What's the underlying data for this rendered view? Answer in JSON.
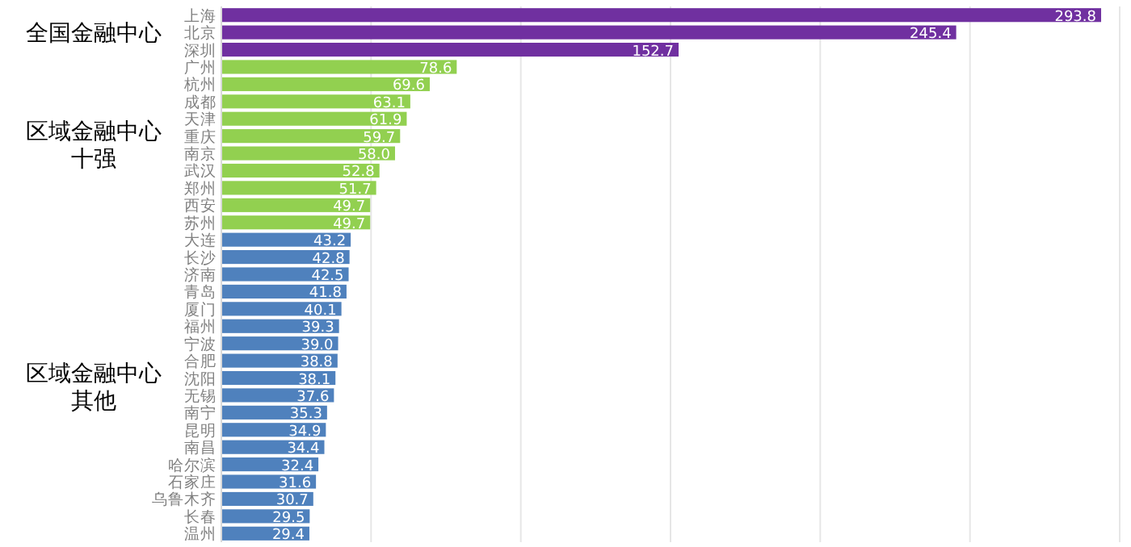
{
  "chart_data": {
    "type": "bar",
    "orientation": "horizontal",
    "categories": [
      "上海",
      "北京",
      "深圳",
      "广州",
      "杭州",
      "成都",
      "天津",
      "重庆",
      "南京",
      "武汉",
      "郑州",
      "西安",
      "苏州",
      "大连",
      "长沙",
      "济南",
      "青岛",
      "厦门",
      "福州",
      "宁波",
      "合肥",
      "沈阳",
      "无锡",
      "南宁",
      "昆明",
      "南昌",
      "哈尔滨",
      "石家庄",
      "乌鲁木齐",
      "长春",
      "温州"
    ],
    "values": [
      293.8,
      245.4,
      152.7,
      78.6,
      69.6,
      63.1,
      61.9,
      59.7,
      58.0,
      52.8,
      51.7,
      49.7,
      49.7,
      43.2,
      42.8,
      42.5,
      41.8,
      40.1,
      39.3,
      39.0,
      38.8,
      38.1,
      37.6,
      35.3,
      34.9,
      34.4,
      32.4,
      31.6,
      30.7,
      29.5,
      29.4
    ],
    "value_labels": [
      "293.8",
      "245.4",
      "152.7",
      "78.6",
      "69.6",
      "63.1",
      "61.9",
      "59.7",
      "58.0",
      "52.8",
      "51.7",
      "49.7",
      "49.7",
      "43.2",
      "42.8",
      "42.5",
      "41.8",
      "40.1",
      "39.3",
      "39.0",
      "38.8",
      "38.1",
      "37.6",
      "35.3",
      "34.9",
      "34.4",
      "32.4",
      "31.6",
      "30.7",
      "29.5",
      "29.4"
    ],
    "colors": [
      "#7030a0",
      "#7030a0",
      "#7030a0",
      "#92d050",
      "#92d050",
      "#92d050",
      "#92d050",
      "#92d050",
      "#92d050",
      "#92d050",
      "#92d050",
      "#92d050",
      "#92d050",
      "#4f81bd",
      "#4f81bd",
      "#4f81bd",
      "#4f81bd",
      "#4f81bd",
      "#4f81bd",
      "#4f81bd",
      "#4f81bd",
      "#4f81bd",
      "#4f81bd",
      "#4f81bd",
      "#4f81bd",
      "#4f81bd",
      "#4f81bd",
      "#4f81bd",
      "#4f81bd",
      "#4f81bd",
      "#4f81bd"
    ],
    "annotations": [
      "全国金融中心",
      "区域金融中心十强",
      "区域金融中心其他"
    ],
    "xlim": [
      0,
      300
    ],
    "xticks": [
      {
        "value": 0,
        "label": null
      },
      {
        "value": 50,
        "label": null
      },
      {
        "value": 100,
        "label": null
      },
      {
        "value": 150,
        "label": null
      },
      {
        "value": 200,
        "label": null
      },
      {
        "value": 250,
        "label": null
      },
      {
        "value": 300,
        "label": null
      }
    ],
    "grid": "x"
  }
}
